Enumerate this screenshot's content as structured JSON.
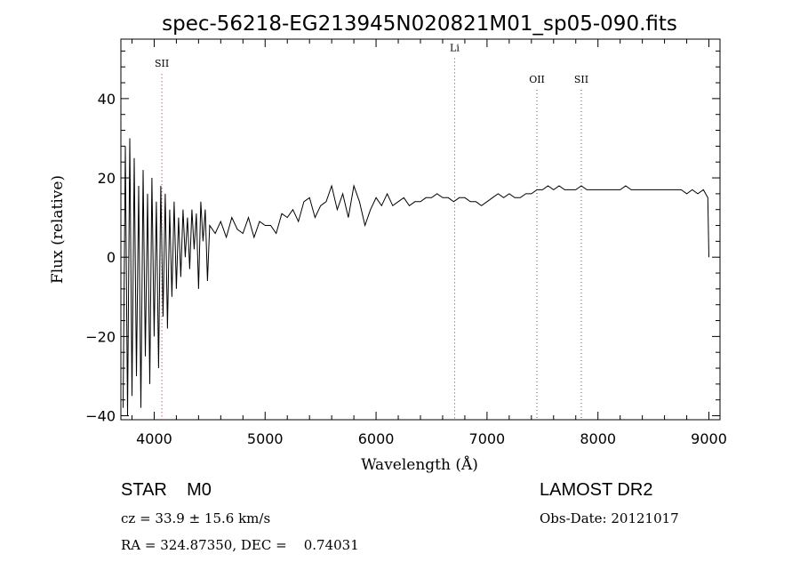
{
  "chart_data": {
    "type": "line",
    "title": "spec-56218-EG213945N020821M01_sp05-090.fits",
    "xlabel": "Wavelength (Å)",
    "ylabel": "Flux (relative)",
    "xlim": [
      3700,
      9100
    ],
    "ylim": [
      -41,
      55
    ],
    "xticks": [
      4000,
      5000,
      6000,
      7000,
      8000,
      9000
    ],
    "yticks": [
      -40,
      -20,
      0,
      20,
      40
    ],
    "grid": false,
    "line_color": "#000000",
    "marker_color": "#ff0000",
    "lines": [
      {
        "label": "SII",
        "x": 4069,
        "label_y": 48
      },
      {
        "label": "Li",
        "x": 6708,
        "label_y": 52
      },
      {
        "label": "OII",
        "x": 7450,
        "label_y": 44
      },
      {
        "label": "SII",
        "x": 7850,
        "label_y": 44
      }
    ],
    "series": [
      {
        "x": [
          3720,
          3740,
          3760,
          3780,
          3800,
          3820,
          3840,
          3860,
          3880,
          3900,
          3920,
          3940,
          3960,
          3980,
          4000,
          4020,
          4040,
          4060,
          4080,
          4100,
          4120,
          4140,
          4160,
          4180,
          4200,
          4220,
          4240,
          4260,
          4280,
          4300,
          4320,
          4340,
          4360,
          4380,
          4400,
          4420,
          4440,
          4460,
          4480,
          4500,
          4550,
          4600,
          4650,
          4700,
          4750,
          4800,
          4850,
          4900,
          4950,
          5000,
          5050,
          5100,
          5150,
          5200,
          5250,
          5300,
          5350,
          5400,
          5450,
          5500,
          5550,
          5600,
          5650,
          5700,
          5750,
          5800,
          5850,
          5900,
          5950,
          6000,
          6050,
          6100,
          6150,
          6200,
          6250,
          6300,
          6350,
          6400,
          6450,
          6500,
          6550,
          6600,
          6650,
          6700,
          6750,
          6800,
          6850,
          6900,
          6950,
          7000,
          7050,
          7100,
          7150,
          7200,
          7250,
          7300,
          7350,
          7400,
          7450,
          7500,
          7550,
          7600,
          7650,
          7700,
          7750,
          7800,
          7850,
          7900,
          7950,
          8000,
          8050,
          8100,
          8150,
          8200,
          8250,
          8300,
          8350,
          8400,
          8450,
          8500,
          8550,
          8600,
          8650,
          8700,
          8750,
          8800,
          8850,
          8900,
          8950,
          8990,
          9000
        ],
        "y": [
          -38,
          28,
          -40,
          30,
          -35,
          25,
          -30,
          18,
          -38,
          22,
          -25,
          16,
          -32,
          20,
          -20,
          14,
          -28,
          18,
          -15,
          16,
          -18,
          12,
          -10,
          14,
          -8,
          10,
          -5,
          12,
          0,
          10,
          -3,
          12,
          2,
          11,
          -8,
          14,
          4,
          12,
          -6,
          8,
          6,
          9,
          5,
          10,
          7,
          6,
          10,
          5,
          9,
          8,
          8,
          6,
          11,
          10,
          12,
          9,
          14,
          15,
          10,
          13,
          14,
          18,
          12,
          16,
          10,
          18,
          14,
          8,
          12,
          15,
          13,
          16,
          13,
          14,
          15,
          13,
          14,
          14,
          15,
          15,
          16,
          15,
          15,
          14,
          15,
          15,
          14,
          14,
          13,
          14,
          15,
          16,
          15,
          16,
          15,
          15,
          16,
          16,
          17,
          17,
          18,
          17,
          18,
          17,
          17,
          17,
          18,
          17,
          17,
          17,
          17,
          17,
          17,
          17,
          18,
          17,
          17,
          17,
          17,
          17,
          17,
          17,
          17,
          17,
          17,
          16,
          17,
          16,
          17,
          15,
          0
        ]
      }
    ]
  },
  "footer": {
    "object": "STAR    M0",
    "survey": "LAMOST DR2",
    "redshift": "cz = 33.9 ± 15.6 km/s",
    "obs_date": "Obs-Date: 20121017",
    "coords": "RA = 324.87350, DEC =    0.74031"
  }
}
